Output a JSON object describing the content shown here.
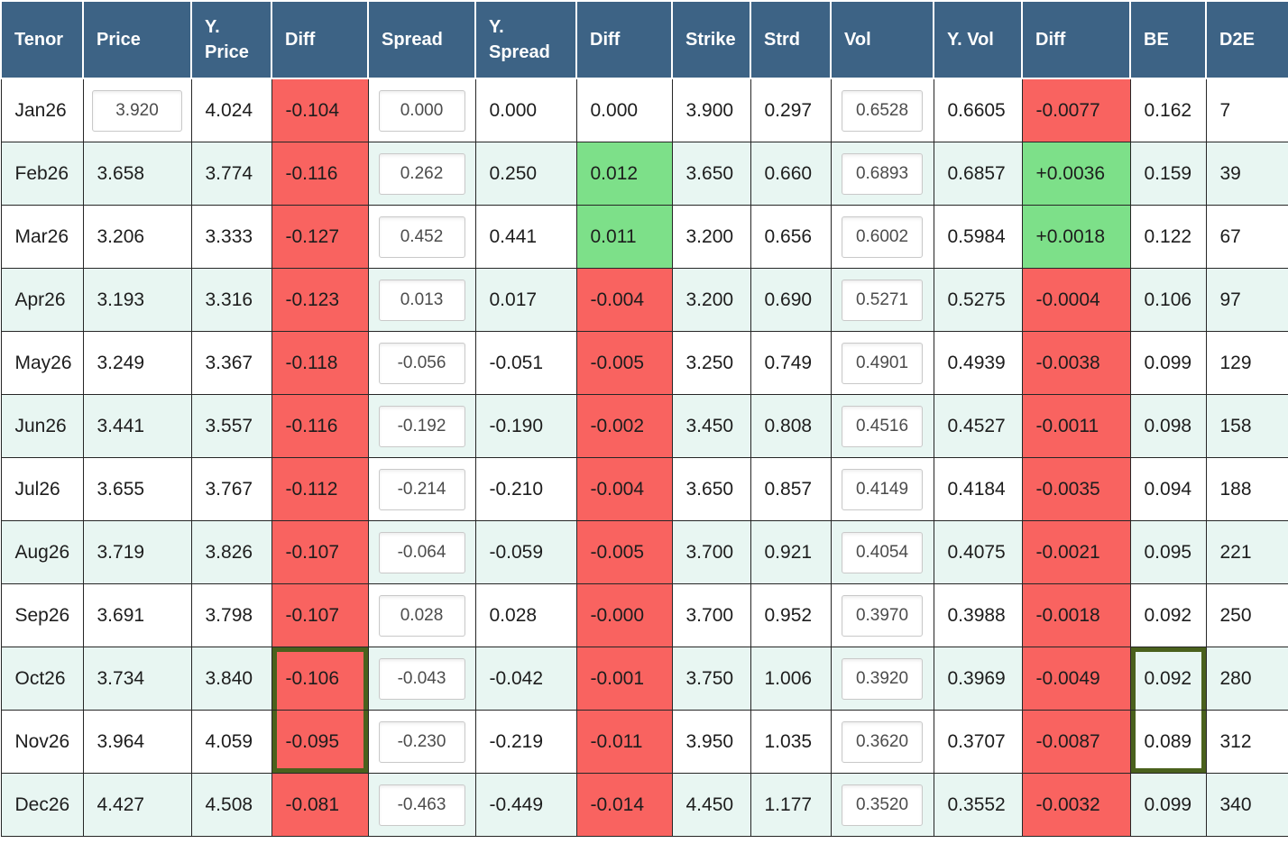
{
  "colors": {
    "header_bg": "#3d6385",
    "negative_cell": "#f96360",
    "positive_cell": "#7de089",
    "row_alternate": "#e8f6f2",
    "selection_outline": "#4a611d"
  },
  "table": {
    "columns": [
      {
        "key": "tenor",
        "label": "Tenor"
      },
      {
        "key": "price",
        "label": "Price"
      },
      {
        "key": "y_price",
        "label": "Y. Price"
      },
      {
        "key": "diff_price",
        "label": "Diff"
      },
      {
        "key": "spread",
        "label": "Spread"
      },
      {
        "key": "y_spread",
        "label": "Y. Spread"
      },
      {
        "key": "diff_spread",
        "label": "Diff"
      },
      {
        "key": "strike",
        "label": "Strike"
      },
      {
        "key": "strd",
        "label": "Strd"
      },
      {
        "key": "vol",
        "label": "Vol"
      },
      {
        "key": "y_vol",
        "label": "Y. Vol"
      },
      {
        "key": "diff_vol",
        "label": "Diff"
      },
      {
        "key": "be",
        "label": "BE"
      },
      {
        "key": "d2e",
        "label": "D2E"
      }
    ],
    "rows": [
      {
        "tenor": "Jan26",
        "price": "3.920",
        "price_is_input": true,
        "y_price": "4.024",
        "diff_price": "-0.104",
        "diff_price_state": "neg",
        "spread": "0.000",
        "y_spread": "0.000",
        "diff_spread": "0.000",
        "diff_spread_state": "none",
        "strike": "3.900",
        "strd": "0.297",
        "vol": "0.6528",
        "y_vol": "0.6605",
        "diff_vol": "-0.0077",
        "diff_vol_state": "neg",
        "be": "0.162",
        "d2e": "7"
      },
      {
        "tenor": "Feb26",
        "price": "3.658",
        "price_is_input": false,
        "y_price": "3.774",
        "diff_price": "-0.116",
        "diff_price_state": "neg",
        "spread": "0.262",
        "y_spread": "0.250",
        "diff_spread": "0.012",
        "diff_spread_state": "pos",
        "strike": "3.650",
        "strd": "0.660",
        "vol": "0.6893",
        "y_vol": "0.6857",
        "diff_vol": "+0.0036",
        "diff_vol_state": "pos",
        "be": "0.159",
        "d2e": "39"
      },
      {
        "tenor": "Mar26",
        "price": "3.206",
        "price_is_input": false,
        "y_price": "3.333",
        "diff_price": "-0.127",
        "diff_price_state": "neg",
        "spread": "0.452",
        "y_spread": "0.441",
        "diff_spread": "0.011",
        "diff_spread_state": "pos",
        "strike": "3.200",
        "strd": "0.656",
        "vol": "0.6002",
        "y_vol": "0.5984",
        "diff_vol": "+0.0018",
        "diff_vol_state": "pos",
        "be": "0.122",
        "d2e": "67"
      },
      {
        "tenor": "Apr26",
        "price": "3.193",
        "price_is_input": false,
        "y_price": "3.316",
        "diff_price": "-0.123",
        "diff_price_state": "neg",
        "spread": "0.013",
        "y_spread": "0.017",
        "diff_spread": "-0.004",
        "diff_spread_state": "neg",
        "strike": "3.200",
        "strd": "0.690",
        "vol": "0.5271",
        "y_vol": "0.5275",
        "diff_vol": "-0.0004",
        "diff_vol_state": "neg",
        "be": "0.106",
        "d2e": "97"
      },
      {
        "tenor": "May26",
        "price": "3.249",
        "price_is_input": false,
        "y_price": "3.367",
        "diff_price": "-0.118",
        "diff_price_state": "neg",
        "spread": "-0.056",
        "y_spread": "-0.051",
        "diff_spread": "-0.005",
        "diff_spread_state": "neg",
        "strike": "3.250",
        "strd": "0.749",
        "vol": "0.4901",
        "y_vol": "0.4939",
        "diff_vol": "-0.0038",
        "diff_vol_state": "neg",
        "be": "0.099",
        "d2e": "129"
      },
      {
        "tenor": "Jun26",
        "price": "3.441",
        "price_is_input": false,
        "y_price": "3.557",
        "diff_price": "-0.116",
        "diff_price_state": "neg",
        "spread": "-0.192",
        "y_spread": "-0.190",
        "diff_spread": "-0.002",
        "diff_spread_state": "neg",
        "strike": "3.450",
        "strd": "0.808",
        "vol": "0.4516",
        "y_vol": "0.4527",
        "diff_vol": "-0.0011",
        "diff_vol_state": "neg",
        "be": "0.098",
        "d2e": "158"
      },
      {
        "tenor": "Jul26",
        "price": "3.655",
        "price_is_input": false,
        "y_price": "3.767",
        "diff_price": "-0.112",
        "diff_price_state": "neg",
        "spread": "-0.214",
        "y_spread": "-0.210",
        "diff_spread": "-0.004",
        "diff_spread_state": "neg",
        "strike": "3.650",
        "strd": "0.857",
        "vol": "0.4149",
        "y_vol": "0.4184",
        "diff_vol": "-0.0035",
        "diff_vol_state": "neg",
        "be": "0.094",
        "d2e": "188"
      },
      {
        "tenor": "Aug26",
        "price": "3.719",
        "price_is_input": false,
        "y_price": "3.826",
        "diff_price": "-0.107",
        "diff_price_state": "neg",
        "spread": "-0.064",
        "y_spread": "-0.059",
        "diff_spread": "-0.005",
        "diff_spread_state": "neg",
        "strike": "3.700",
        "strd": "0.921",
        "vol": "0.4054",
        "y_vol": "0.4075",
        "diff_vol": "-0.0021",
        "diff_vol_state": "neg",
        "be": "0.095",
        "d2e": "221"
      },
      {
        "tenor": "Sep26",
        "price": "3.691",
        "price_is_input": false,
        "y_price": "3.798",
        "diff_price": "-0.107",
        "diff_price_state": "neg",
        "spread": "0.028",
        "y_spread": "0.028",
        "diff_spread": "-0.000",
        "diff_spread_state": "neg",
        "strike": "3.700",
        "strd": "0.952",
        "vol": "0.3970",
        "y_vol": "0.3988",
        "diff_vol": "-0.0018",
        "diff_vol_state": "neg",
        "be": "0.092",
        "d2e": "250"
      },
      {
        "tenor": "Oct26",
        "price": "3.734",
        "price_is_input": false,
        "y_price": "3.840",
        "diff_price": "-0.106",
        "diff_price_state": "neg",
        "spread": "-0.043",
        "y_spread": "-0.042",
        "diff_spread": "-0.001",
        "diff_spread_state": "neg",
        "strike": "3.750",
        "strd": "1.006",
        "vol": "0.3920",
        "y_vol": "0.3969",
        "diff_vol": "-0.0049",
        "diff_vol_state": "neg",
        "be": "0.092",
        "d2e": "280"
      },
      {
        "tenor": "Nov26",
        "price": "3.964",
        "price_is_input": false,
        "y_price": "4.059",
        "diff_price": "-0.095",
        "diff_price_state": "neg",
        "spread": "-0.230",
        "y_spread": "-0.219",
        "diff_spread": "-0.011",
        "diff_spread_state": "neg",
        "strike": "3.950",
        "strd": "1.035",
        "vol": "0.3620",
        "y_vol": "0.3707",
        "diff_vol": "-0.0087",
        "diff_vol_state": "neg",
        "be": "0.089",
        "d2e": "312"
      },
      {
        "tenor": "Dec26",
        "price": "4.427",
        "price_is_input": false,
        "y_price": "4.508",
        "diff_price": "-0.081",
        "diff_price_state": "neg",
        "spread": "-0.463",
        "y_spread": "-0.449",
        "diff_spread": "-0.014",
        "diff_spread_state": "neg",
        "strike": "4.450",
        "strd": "1.177",
        "vol": "0.3520",
        "y_vol": "0.3552",
        "diff_vol": "-0.0032",
        "diff_vol_state": "neg",
        "be": "0.099",
        "d2e": "340"
      }
    ]
  },
  "selection": {
    "tenors": [
      "Oct26",
      "Nov26"
    ],
    "columns": [
      "diff_price",
      "be"
    ]
  }
}
